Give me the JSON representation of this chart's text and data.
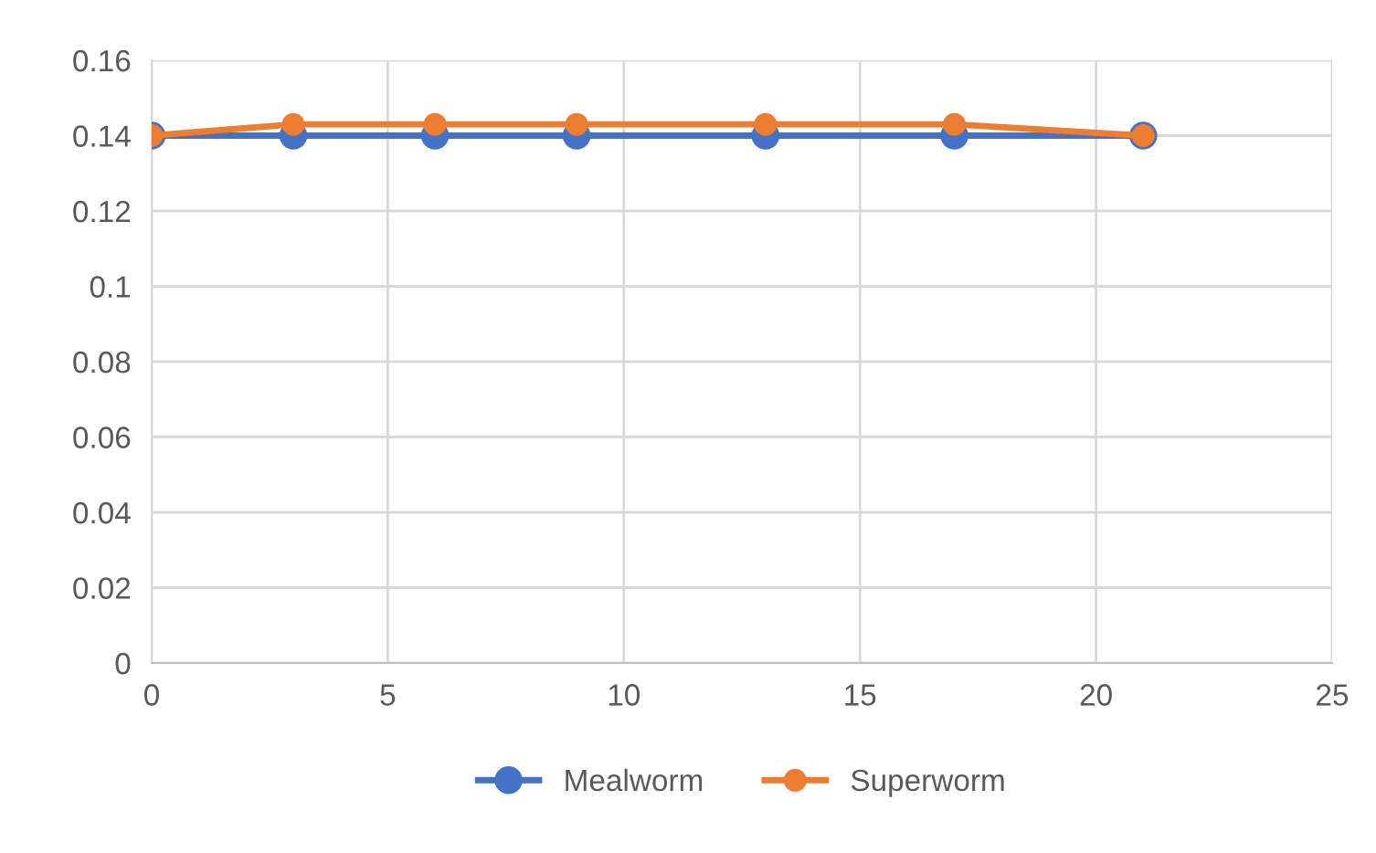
{
  "chart_data": {
    "type": "line",
    "x": [
      0,
      3,
      6,
      9,
      13,
      17,
      21
    ],
    "series": [
      {
        "name": "Mealworm",
        "color": "#4472c4",
        "values": [
          0.14,
          0.14,
          0.14,
          0.14,
          0.14,
          0.14,
          0.14
        ]
      },
      {
        "name": "Superworm",
        "color": "#ed7d31",
        "values": [
          0.14,
          0.143,
          0.143,
          0.143,
          0.143,
          0.143,
          0.14
        ]
      }
    ],
    "xlim": [
      0,
      25
    ],
    "xticks": [
      0,
      5,
      10,
      15,
      20,
      25
    ],
    "ylim": [
      0,
      0.16
    ],
    "yticks": [
      0,
      0.02,
      0.04,
      0.06,
      0.08,
      0.1,
      0.12,
      0.14,
      0.16
    ],
    "grid": true,
    "legend": "bottom",
    "marker": "circle",
    "line_style": "solid"
  }
}
